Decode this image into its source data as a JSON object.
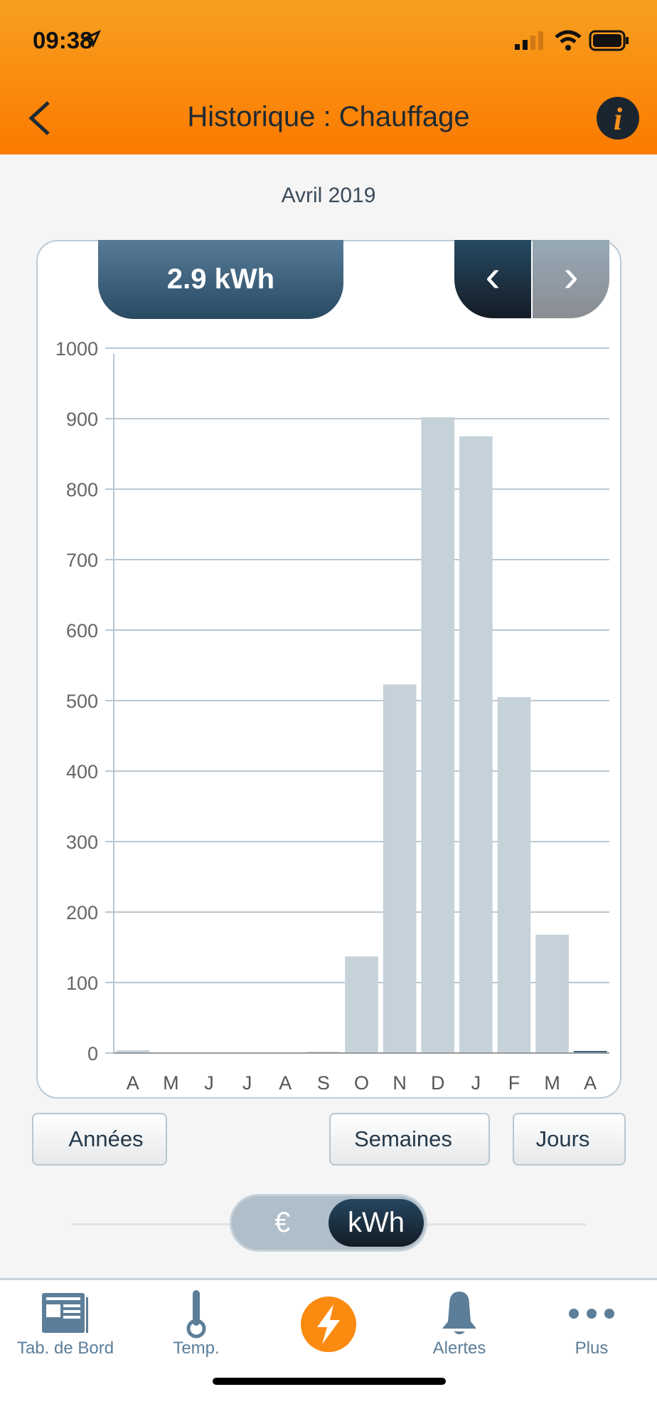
{
  "status": {
    "time": "09:38"
  },
  "header": {
    "title": "Historique : Chauffage",
    "back_icon": "chevron-left-icon",
    "info_icon": "info-icon"
  },
  "period": "Avril 2019",
  "total_badge": "2.9 kWh",
  "nav": {
    "prev": "‹",
    "next": "›"
  },
  "chart_data": {
    "type": "bar",
    "categories": [
      "A",
      "M",
      "J",
      "J",
      "A",
      "S",
      "O",
      "N",
      "D",
      "J",
      "F",
      "M",
      "A"
    ],
    "values": [
      4,
      0,
      0,
      0,
      0,
      2,
      137,
      523,
      902,
      875,
      505,
      168,
      3
    ],
    "selected_index": 12,
    "ylim": [
      0,
      1000
    ],
    "yticks": [
      0,
      100,
      200,
      300,
      400,
      500,
      600,
      700,
      800,
      900,
      1000
    ],
    "grid": true,
    "colors": {
      "bar": "#c6d2da",
      "selected": "#3d6580"
    }
  },
  "buttons": {
    "years": "Années",
    "weeks": "Semaines",
    "days": "Jours"
  },
  "unit_toggle": {
    "euro": "€",
    "kwh": "kWh",
    "selected": "kWh"
  },
  "tabs": [
    {
      "label": "Tab. de Bord"
    },
    {
      "label": "Temp."
    },
    {
      "label": ""
    },
    {
      "label": "Alertes"
    },
    {
      "label": "Plus"
    }
  ],
  "colors": {
    "accent": "#fb8a10",
    "tab": "#5c7e99"
  }
}
